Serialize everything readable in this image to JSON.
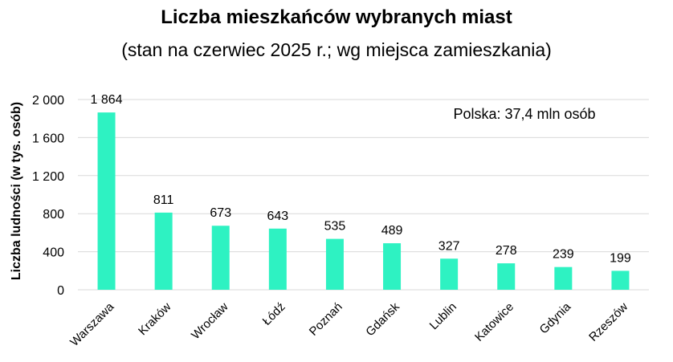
{
  "chart_data": {
    "type": "bar",
    "title": "Liczba mieszkańców wybranych miast",
    "subtitle": "(stan na czerwiec 2025 r.; wg miejsca zamieszkania)",
    "ylabel": "Liczba ludności (w tys. osób)",
    "xlabel": "",
    "annotation": "Polska: 37,4 mln osób",
    "categories": [
      "Warszawa",
      "Kraków",
      "Wrocław",
      "Łódź",
      "Poznań",
      "Gdańsk",
      "Lublin",
      "Katowice",
      "Gdynia",
      "Rzeszów"
    ],
    "values": [
      1864,
      811,
      673,
      643,
      535,
      489,
      327,
      278,
      239,
      199
    ],
    "value_labels": [
      "1 864",
      "811",
      "673",
      "643",
      "535",
      "489",
      "327",
      "278",
      "239",
      "199"
    ],
    "ylim": [
      0,
      2000
    ],
    "yticks": [
      0,
      400,
      800,
      1200,
      1600,
      2000
    ],
    "ytick_labels": [
      "0",
      "400",
      "800",
      "1 200",
      "1 600",
      "2 000"
    ],
    "grid": true,
    "bar_color": "#2ef2c2",
    "grid_color": "#d9d9d9"
  }
}
